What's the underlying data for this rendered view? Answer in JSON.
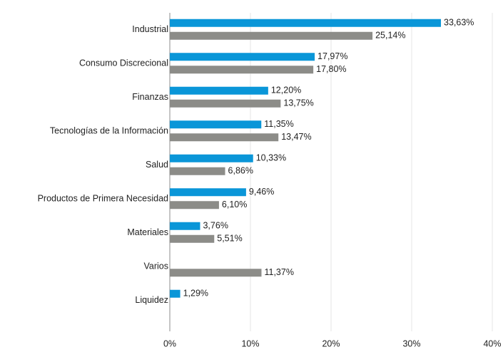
{
  "chart_data": {
    "type": "bar",
    "orientation": "horizontal",
    "categories": [
      "Industrial",
      "Consumo Discrecional",
      "Finanzas",
      "Tecnologías de la Información",
      "Salud",
      "Productos de Primera Necesidad",
      "Materiales",
      "Varios",
      "Liquidez"
    ],
    "series": [
      {
        "color": "#0a96d8",
        "values": [
          33.63,
          17.97,
          12.2,
          11.35,
          10.33,
          9.46,
          3.76,
          null,
          1.29
        ],
        "value_labels": [
          "33,63%",
          "17,97%",
          "12,20%",
          "11,35%",
          "10,33%",
          "9,46%",
          "3,76%",
          null,
          "1,29%"
        ]
      },
      {
        "color": "#8c8c88",
        "values": [
          25.14,
          17.8,
          13.75,
          13.47,
          6.86,
          6.1,
          5.51,
          11.37,
          null
        ],
        "value_labels": [
          "25,14%",
          "17,80%",
          "13,75%",
          "13,47%",
          "6,86%",
          "6,10%",
          "5,51%",
          "11,37%",
          null
        ]
      }
    ],
    "xlim": [
      0,
      40
    ],
    "xticks": [
      {
        "value": 0,
        "label": "0%"
      },
      {
        "value": 10,
        "label": "10%"
      },
      {
        "value": 20,
        "label": "20%"
      },
      {
        "value": 30,
        "label": "30%"
      },
      {
        "value": 40,
        "label": "40%"
      }
    ],
    "grid": true
  }
}
